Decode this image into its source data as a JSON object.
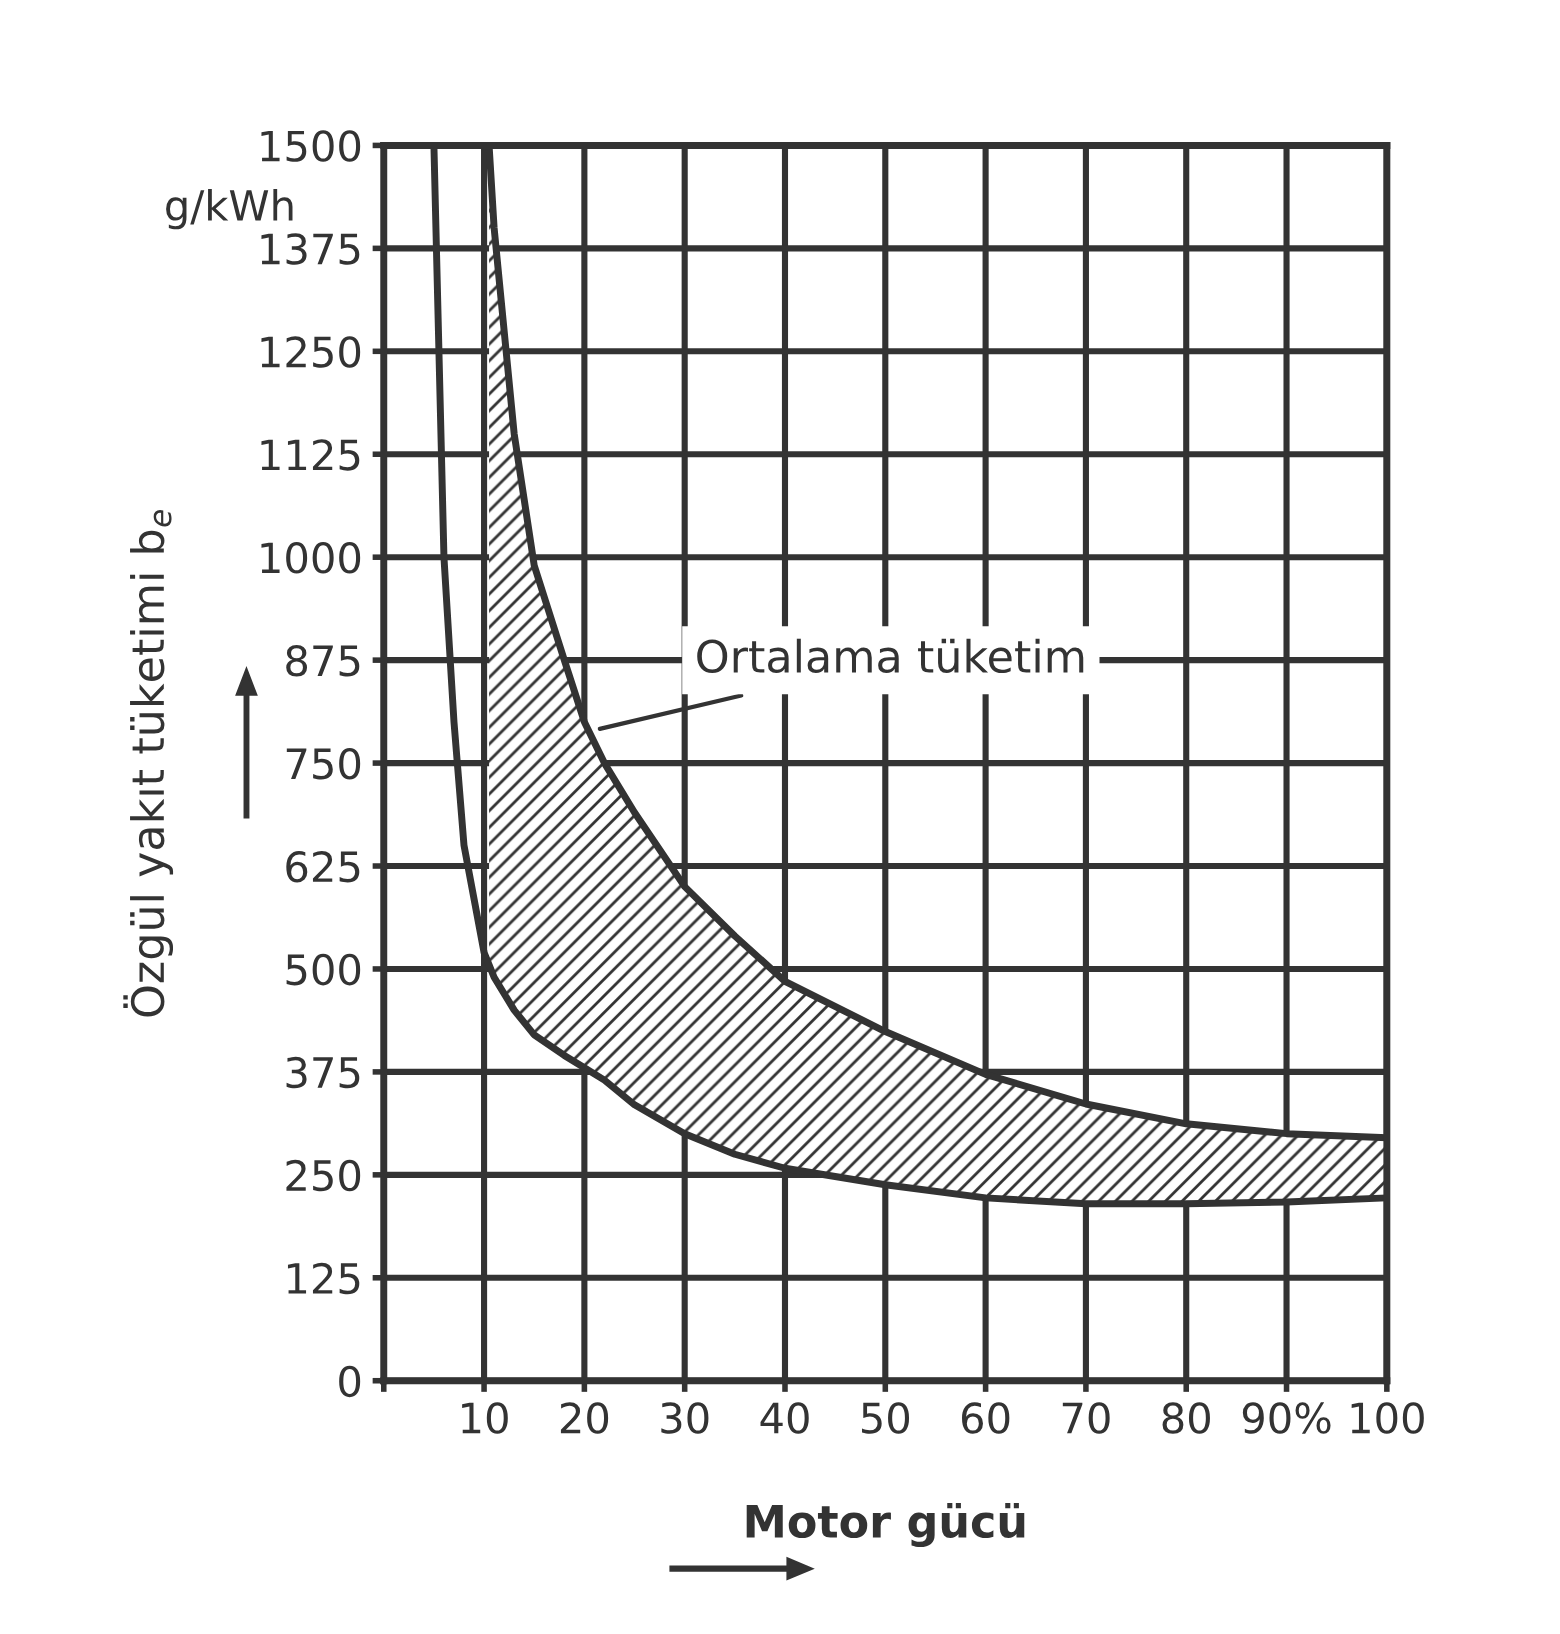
{
  "chart_data": {
    "type": "line",
    "xlabel": "Motor gücü",
    "ylabel": "Özgül yakıt tüketimi b$_{e}$",
    "annotations": [
      "g/kWh",
      {
        "text": "Ortalama tüketim",
        "x": 21,
        "y": 790
      }
    ],
    "series": [
      {
        "color": "#333333",
        "x": [
          5,
          6,
          7,
          8,
          10,
          10.5,
          11,
          13,
          15,
          18,
          20,
          22,
          25,
          30,
          35,
          40,
          50,
          60,
          70,
          80,
          90,
          100
        ],
        "values": [
          1500,
          1000,
          800,
          650,
          520,
          505,
          490,
          450,
          420,
          395,
          380,
          365,
          335,
          300,
          275,
          258,
          238,
          222,
          215,
          215,
          217,
          222
        ]
      },
      {
        "color": "#333333",
        "x": [
          10.5,
          11,
          13,
          15,
          18,
          20,
          22,
          25,
          30,
          35,
          40,
          50,
          60,
          70,
          80,
          90,
          100
        ],
        "values": [
          1500,
          1400,
          1150,
          990,
          875,
          800,
          750,
          690,
          600,
          540,
          485,
          424,
          372,
          336,
          312,
          300,
          295
        ],
        "lower": [
          505,
          490,
          450,
          420,
          395,
          380,
          365,
          335,
          300,
          275,
          258,
          238,
          222,
          215,
          215,
          217,
          222
        ],
        "upper": [
          1500,
          1400,
          1150,
          990,
          875,
          800,
          750,
          690,
          600,
          540,
          485,
          424,
          372,
          336,
          312,
          300,
          295
        ]
      }
    ],
    "xlim": [
      0,
      100
    ],
    "ylim": [
      0,
      1500
    ],
    "xticks": [
      {
        "value": 0,
        "label": null
      },
      10,
      20,
      30,
      40,
      50,
      60,
      70,
      80,
      {
        "value": 90,
        "label": "90%"
      },
      100
    ],
    "yticks": [
      0,
      125,
      250,
      375,
      500,
      625,
      750,
      875,
      1000,
      1125,
      1250,
      1375,
      1500
    ],
    "grid": true,
    "marker": "none",
    "line_style": "solid"
  }
}
